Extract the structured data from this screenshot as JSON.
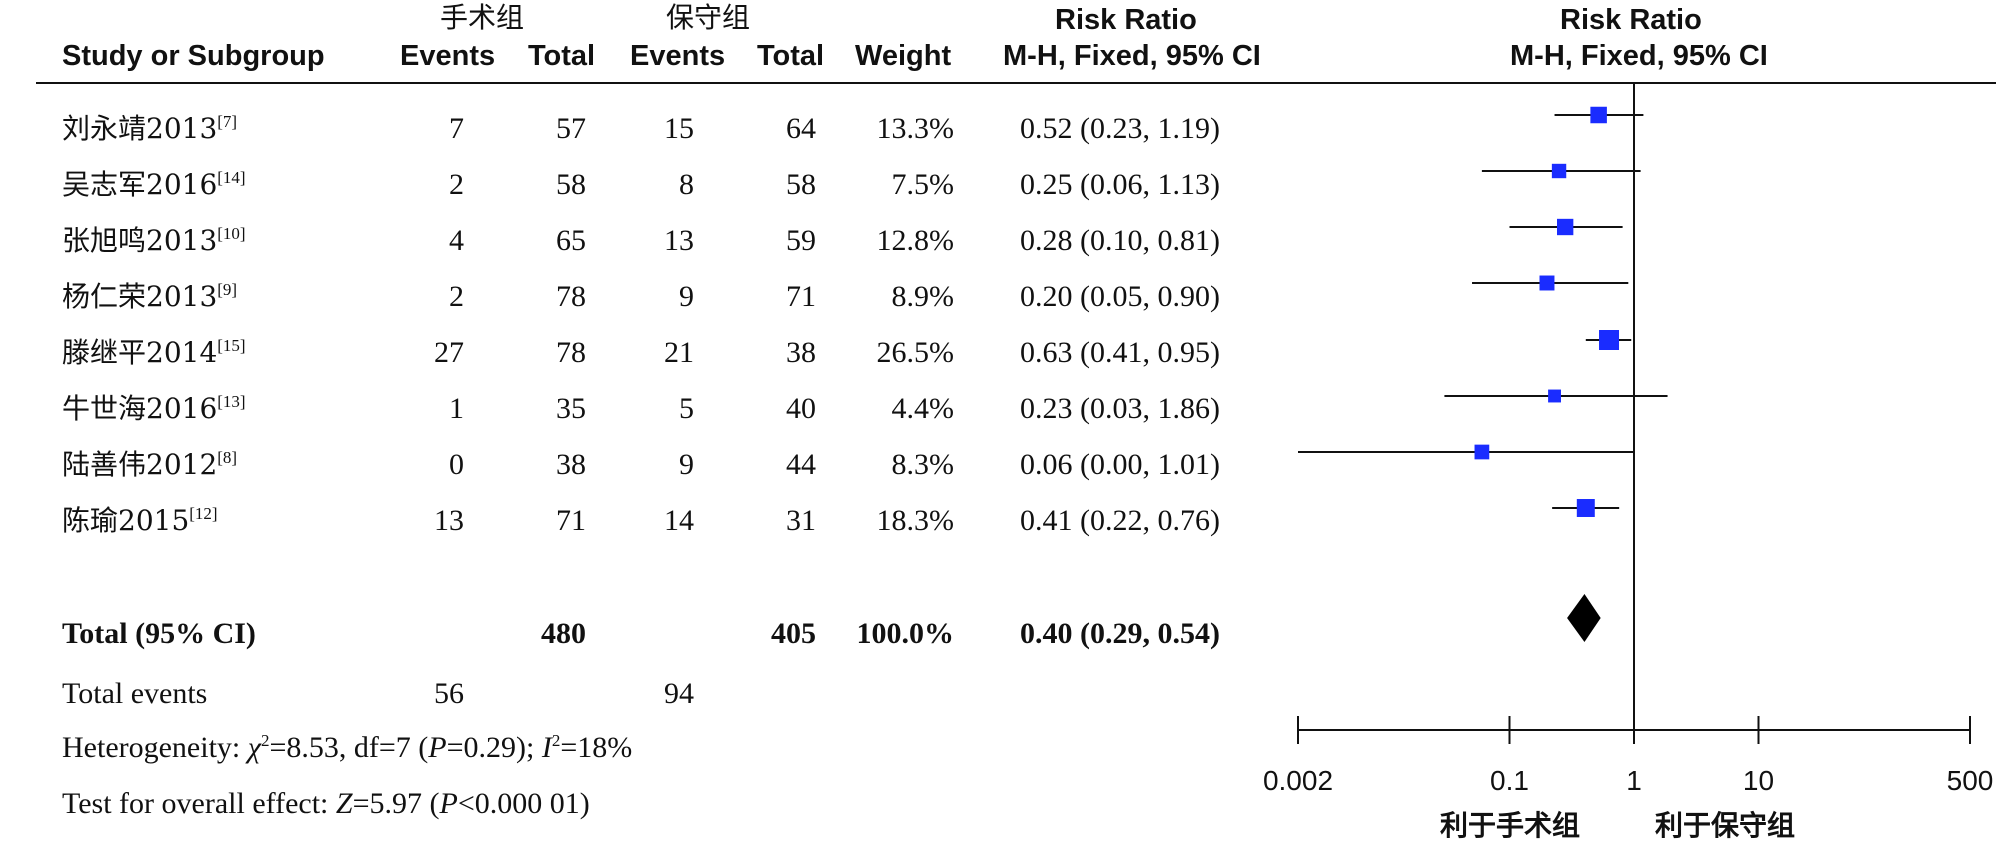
{
  "header": {
    "group1_name": "手术组",
    "group2_name": "保守组",
    "study_col": "Study or Subgroup",
    "events_label": "Events",
    "total_label": "Total",
    "weight_label": "Weight",
    "rr_title": "Risk Ratio",
    "rr_method": "M-H, Fixed, 95% CI",
    "plot_title": "Risk Ratio",
    "plot_method": "M-H, Fixed, 95% CI"
  },
  "studies": [
    {
      "name": "刘永靖2013",
      "ref": "[7]",
      "e1": "7",
      "n1": "57",
      "e2": "15",
      "n2": "64",
      "weight": "13.3%",
      "ci_text": "0.52 (0.23, 1.19)"
    },
    {
      "name": "吴志军2016",
      "ref": "[14]",
      "e1": "2",
      "n1": "58",
      "e2": "8",
      "n2": "58",
      "weight": "7.5%",
      "ci_text": "0.25 (0.06, 1.13)"
    },
    {
      "name": "张旭鸣2013",
      "ref": "[10]",
      "e1": "4",
      "n1": "65",
      "e2": "13",
      "n2": "59",
      "weight": "12.8%",
      "ci_text": "0.28 (0.10, 0.81)"
    },
    {
      "name": "杨仁荣2013",
      "ref": "[9]",
      "e1": "2",
      "n1": "78",
      "e2": "9",
      "n2": "71",
      "weight": "8.9%",
      "ci_text": "0.20 (0.05, 0.90)"
    },
    {
      "name": "滕继平2014",
      "ref": "[15]",
      "e1": "27",
      "n1": "78",
      "e2": "21",
      "n2": "38",
      "weight": "26.5%",
      "ci_text": "0.63 (0.41, 0.95)"
    },
    {
      "name": "牛世海2016",
      "ref": "[13]",
      "e1": "1",
      "n1": "35",
      "e2": "5",
      "n2": "40",
      "weight": "4.4%",
      "ci_text": "0.23 (0.03, 1.86)"
    },
    {
      "name": "陆善伟2012",
      "ref": "[8]",
      "e1": "0",
      "n1": "38",
      "e2": "9",
      "n2": "44",
      "weight": "8.3%",
      "ci_text": "0.06 (0.00, 1.01)"
    },
    {
      "name": "陈瑜2015",
      "ref": "[12]",
      "e1": "13",
      "n1": "71",
      "e2": "14",
      "n2": "31",
      "weight": "18.3%",
      "ci_text": "0.41 (0.22, 0.76)"
    }
  ],
  "total": {
    "label": "Total (95% CI)",
    "n1": "480",
    "n2": "405",
    "weight": "100.0%",
    "ci_text": "0.40 (0.29, 0.54)"
  },
  "total_events": {
    "label": "Total events",
    "e1": "56",
    "e2": "94"
  },
  "heterogeneity": {
    "prefix": "Heterogeneity: ",
    "chi_sym": "χ",
    "chi_value": "=8.53, df=7 (",
    "p_sym": "P",
    "p_value": "=0.29); ",
    "i_sym": "I",
    "i_value": "=18%"
  },
  "overall_effect": {
    "prefix": "Test for overall effect: ",
    "z_sym": "Z",
    "z_value": "=5.97 (",
    "p_sym": "P",
    "p_value": "<0.000 01)"
  },
  "axis": {
    "favors_left": "利于手术组",
    "favors_right": "利于保守组"
  },
  "colors": {
    "study_marker": "#1a2cff",
    "total_diamond": "#000000",
    "lines": "#111111"
  },
  "chart_data": {
    "type": "forest",
    "scale": "log",
    "xlim": [
      0.002,
      500
    ],
    "xticks": [
      0.002,
      0.1,
      1,
      10,
      500
    ],
    "xtick_labels": [
      "0.002",
      "0.1",
      "1",
      "10",
      "500"
    ],
    "reference_line": 1,
    "studies": [
      {
        "label": "刘永靖2013",
        "rr": 0.52,
        "lower": 0.23,
        "upper": 1.19,
        "weight": 13.3
      },
      {
        "label": "吴志军2016",
        "rr": 0.25,
        "lower": 0.06,
        "upper": 1.13,
        "weight": 7.5
      },
      {
        "label": "张旭鸣2013",
        "rr": 0.28,
        "lower": 0.1,
        "upper": 0.81,
        "weight": 12.8
      },
      {
        "label": "杨仁荣2013",
        "rr": 0.2,
        "lower": 0.05,
        "upper": 0.9,
        "weight": 8.9
      },
      {
        "label": "滕继平2014",
        "rr": 0.63,
        "lower": 0.41,
        "upper": 0.95,
        "weight": 26.5
      },
      {
        "label": "牛世海2016",
        "rr": 0.23,
        "lower": 0.03,
        "upper": 1.86,
        "weight": 4.4
      },
      {
        "label": "陆善伟2012",
        "rr": 0.06,
        "lower": 0.0,
        "upper": 1.01,
        "weight": 8.3
      },
      {
        "label": "陈瑜2015",
        "rr": 0.41,
        "lower": 0.22,
        "upper": 0.76,
        "weight": 18.3
      }
    ],
    "total": {
      "label": "Total (95% CI)",
      "rr": 0.4,
      "lower": 0.29,
      "upper": 0.54
    }
  }
}
